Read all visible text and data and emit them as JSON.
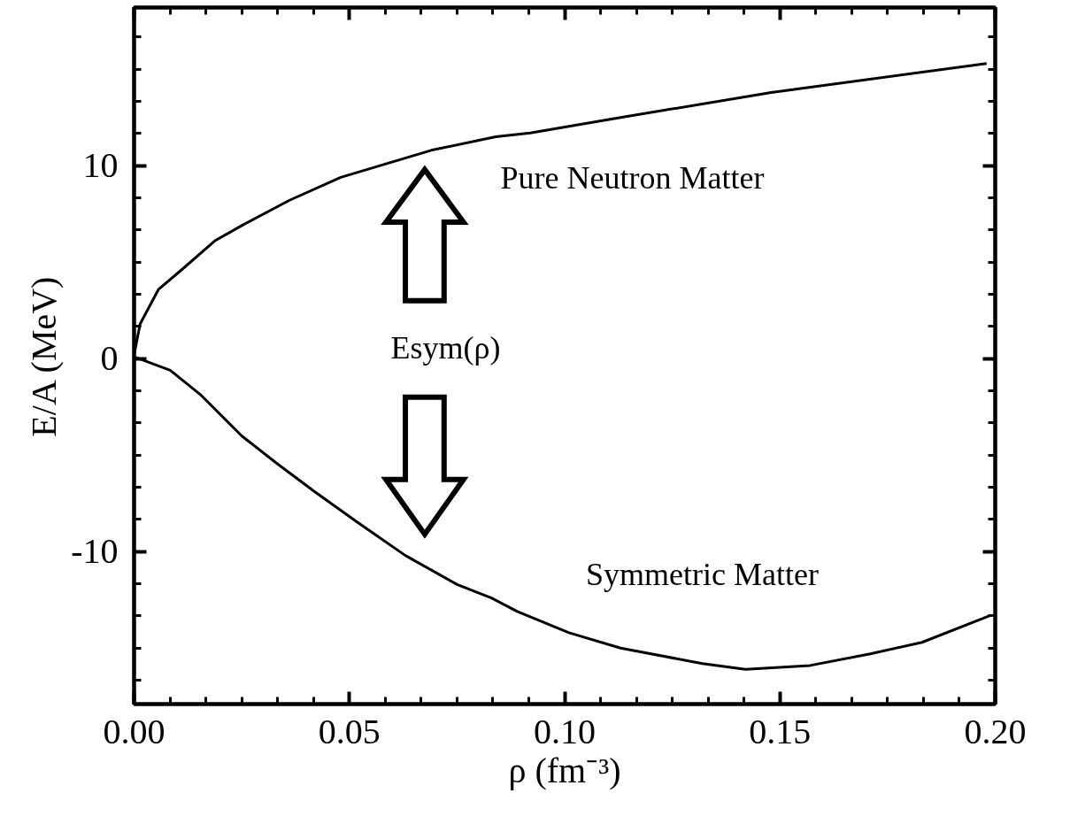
{
  "chart_data": {
    "type": "line",
    "xlabel": "ρ (fm⁻³)",
    "ylabel": "E/A (MeV)",
    "xlim": [
      0,
      0.2
    ],
    "ylim": [
      -17.9,
      18.2
    ],
    "xticks": [
      {
        "value": 0,
        "label": "0.00"
      },
      {
        "value": 0.05,
        "label": "0.05"
      },
      {
        "value": 0.1,
        "label": "0.10"
      },
      {
        "value": 0.15,
        "label": "0.15"
      },
      {
        "value": 0.2,
        "label": "0.20"
      }
    ],
    "yticks": [
      -10,
      0,
      10
    ],
    "grid": false,
    "marker": "none",
    "line_style": "solid",
    "series": [
      {
        "color": "#000000",
        "x": [
          0,
          0.0014,
          0.0057,
          0.011,
          0.0187,
          0.025,
          0.036,
          0.048,
          0.069,
          0.084,
          0.092,
          0.113,
          0.148,
          0.198
        ],
        "values": [
          0.2,
          1.8,
          3.6,
          4.6,
          6.1,
          6.9,
          8.2,
          9.4,
          10.8,
          11.5,
          11.7,
          12.5,
          13.8,
          15.3
        ]
      },
      {
        "color": "#000000",
        "x": [
          0,
          0.0084,
          0.0156,
          0.025,
          0.033,
          0.042,
          0.052,
          0.063,
          0.075,
          0.083,
          0.089,
          0.101,
          0.113,
          0.132,
          0.142,
          0.157,
          0.171,
          0.183,
          0.199
        ],
        "values": [
          0.1,
          -0.6,
          -1.9,
          -4.0,
          -5.4,
          -6.9,
          -8.5,
          -10.2,
          -11.7,
          -12.4,
          -13.1,
          -14.2,
          -15.0,
          -15.8,
          -16.1,
          -15.9,
          -15.3,
          -14.7,
          -13.3
        ]
      }
    ],
    "annotations": [
      "Pure Neutron Matter",
      "Symmetric Matter",
      "Esym(ρ)"
    ]
  }
}
